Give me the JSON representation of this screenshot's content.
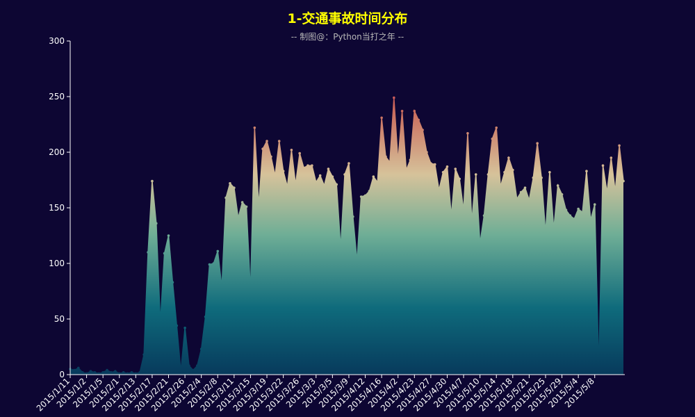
{
  "chart_data": {
    "type": "area",
    "title": "1-交通事故时间分布",
    "subtitle": "-- 制图@：Python当打之年 --",
    "xlabel": "",
    "ylabel": "",
    "ylim": [
      0,
      300
    ],
    "yticks": [
      0,
      50,
      100,
      150,
      200,
      250,
      300
    ],
    "grid": false,
    "x_tick_labels": [
      "2015/1/11",
      "2015/1/2",
      "2015/1/5",
      "2015/2/1",
      "2015/2/13",
      "2015/2/17",
      "2015/2/21",
      "2015/2/26",
      "2015/2/4",
      "2015/2/8",
      "2015/3/11",
      "2015/3/15",
      "2015/3/19",
      "2015/3/22",
      "2015/3/26",
      "2015/3/3",
      "2015/3/5",
      "2015/3/9",
      "2015/4/12",
      "2015/4/16",
      "2015/4/2",
      "2015/4/23",
      "2015/4/27",
      "2015/4/30",
      "2015/4/7",
      "2015/5/10",
      "2015/5/14",
      "2015/5/18",
      "2015/5/21",
      "2015/5/25",
      "2015/5/29",
      "2015/5/4",
      "2015/5/8"
    ],
    "x_tick_every": 4,
    "gradient_colors": [
      "#c2185b",
      "#c9675a",
      "#d6c29a",
      "#6fae96",
      "#0f6b7c",
      "#073a5c"
    ],
    "values": [
      5,
      4,
      6,
      2,
      1,
      3,
      2,
      1,
      2,
      4,
      2,
      3,
      1,
      2,
      1,
      2,
      1,
      2,
      18,
      110,
      174,
      136,
      47,
      109,
      125,
      83,
      44,
      3,
      42,
      8,
      4,
      8,
      23,
      52,
      99,
      100,
      111,
      79,
      159,
      172,
      168,
      141,
      155,
      151,
      75,
      222,
      152,
      203,
      210,
      196,
      179,
      210,
      183,
      169,
      202,
      171,
      199,
      186,
      188,
      188,
      173,
      179,
      170,
      185,
      178,
      171,
      114,
      180,
      190,
      142,
      102,
      160,
      161,
      165,
      178,
      173,
      231,
      196,
      191,
      249,
      192,
      237,
      184,
      193,
      237,
      229,
      220,
      200,
      190,
      189,
      166,
      182,
      187,
      143,
      185,
      176,
      148,
      217,
      138,
      180,
      118,
      143,
      180,
      212,
      222,
      169,
      182,
      195,
      184,
      158,
      164,
      168,
      157,
      177,
      208,
      177,
      128,
      182,
      131,
      170,
      162,
      148,
      143,
      140,
      149,
      146,
      183,
      139,
      153,
      5,
      188,
      164,
      195,
      165,
      206,
      174
    ]
  }
}
